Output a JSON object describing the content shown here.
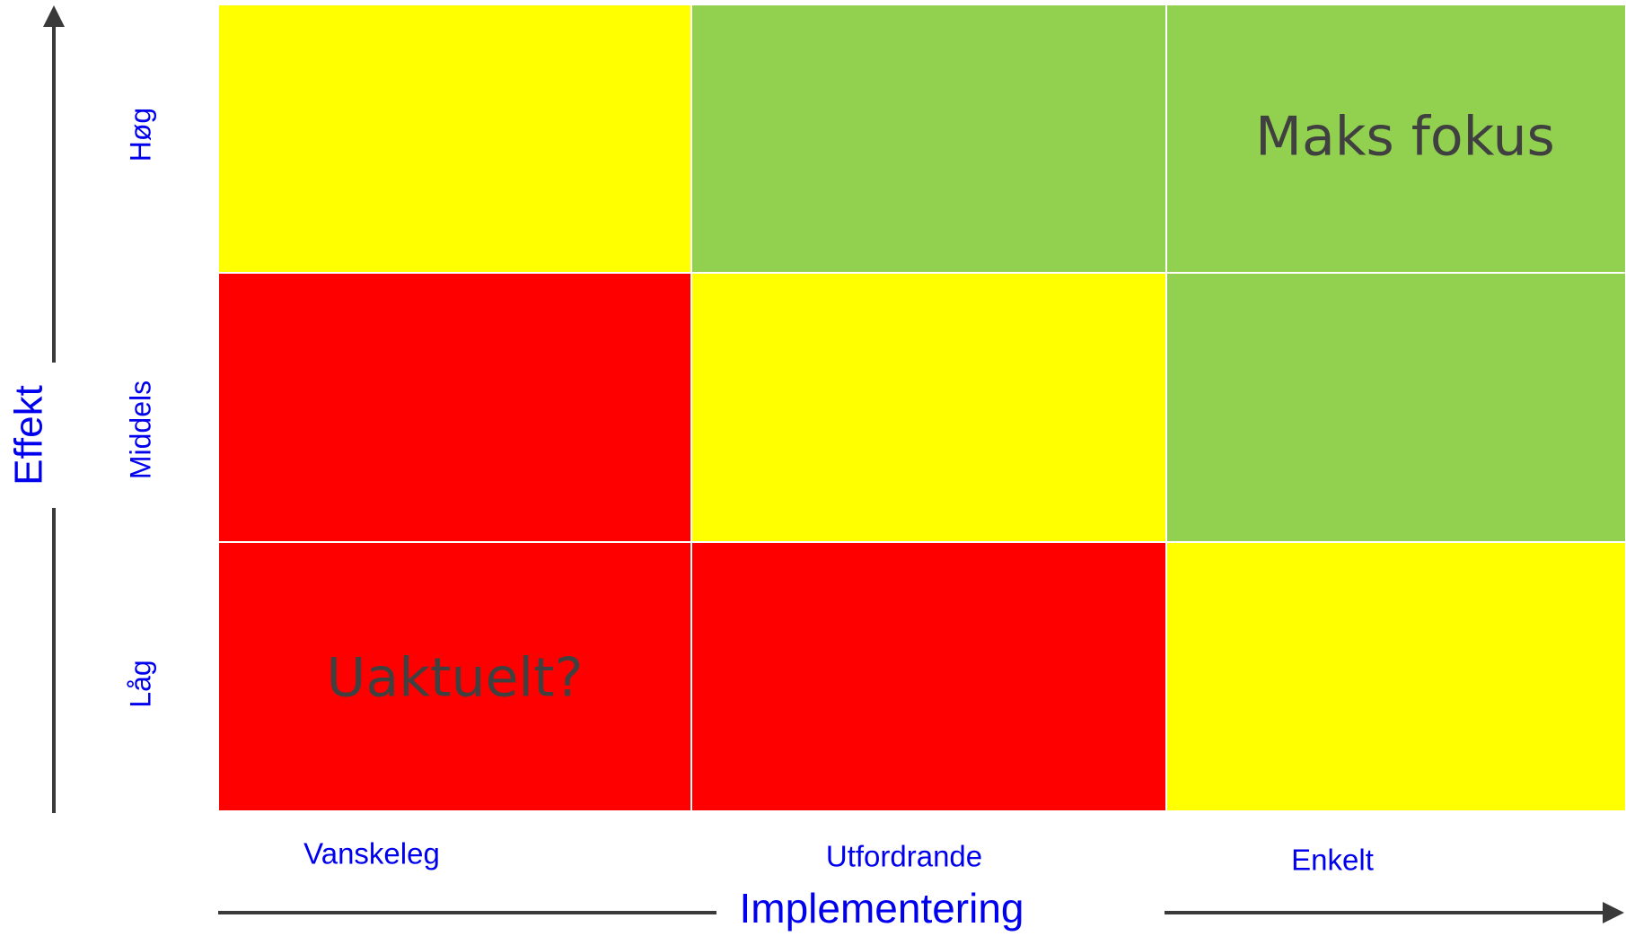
{
  "y_axis": {
    "title": "Effekt",
    "labels": [
      "Høg",
      "Middels",
      "Låg"
    ]
  },
  "x_axis": {
    "title": "Implementering",
    "labels": [
      "Vanskeleg",
      "Utfordrande",
      "Enkelt"
    ]
  },
  "cells": [
    [
      {
        "color": "#ffff00"
      },
      {
        "color": "#92d050"
      },
      {
        "color": "#92d050",
        "text": "Maks fokus"
      }
    ],
    [
      {
        "color": "#ff0000"
      },
      {
        "color": "#ffff00"
      },
      {
        "color": "#92d050"
      }
    ],
    [
      {
        "color": "#ff0000",
        "text": "Uaktuelt?"
      },
      {
        "color": "#ff0000"
      },
      {
        "color": "#ffff00"
      }
    ]
  ]
}
